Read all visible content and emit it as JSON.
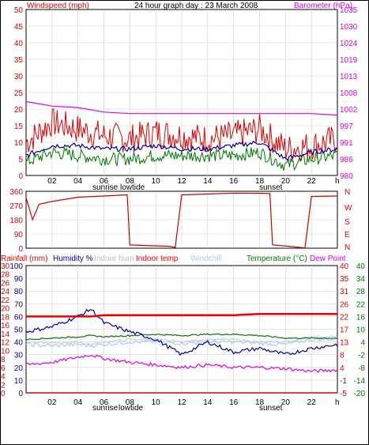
{
  "header": {
    "windspeed_label": "Windspeed (mph)",
    "title": "24 hour graph day : 23 March 2008",
    "barometer_label": "Barometer (hPa)"
  },
  "colors": {
    "wind_avg": "#000099",
    "wind_gust": "#dd0000",
    "wind_low": "#007700",
    "barometer": "#dd00dd",
    "direction": "#cc0000",
    "rain": "#dd0000",
    "humidity": "#000099",
    "indoor_hum": "#ccccdd",
    "indoor_temp": "#ee0000",
    "windchill": "#aaccee",
    "temperature": "#007700",
    "dew_point": "#dd00dd",
    "grid": "#d0d0d0"
  },
  "x_ticks": [
    "02",
    "04",
    "06",
    "08",
    "10",
    "12",
    "14",
    "16",
    "18",
    "20",
    "22"
  ],
  "x_unit": "h",
  "panel1_annotations": [
    "sunrise",
    "lowtide",
    "sunset"
  ],
  "panel3_annotations": [
    "sunrise",
    "lowtide",
    "sunset"
  ],
  "panel3_legend": {
    "rainfall": "Rainfall (mm)",
    "humidity": "Humidity %",
    "indoor_hum": "Indoor hum",
    "indoor_temp": "Indoor temp",
    "windchill": "Windchill",
    "temperature": "Temperature (°C)",
    "dew_point": "Dew Point"
  },
  "chart_data": [
    {
      "type": "line",
      "title": "24 hour graph day : 23 March 2008",
      "ylabel": "Windspeed (mph)",
      "ylabel_right": "Barometer (hPa)",
      "ylim": [
        0,
        50
      ],
      "y_ticks": [
        0,
        5,
        10,
        15,
        20,
        25,
        30,
        35,
        40,
        45,
        50
      ],
      "y2_ticks": [
        980,
        986,
        991,
        997,
        1002,
        1008,
        1013,
        1019,
        1024,
        1030,
        1035
      ],
      "x": [
        0,
        2,
        4,
        6,
        8,
        10,
        12,
        14,
        16,
        18,
        20,
        22,
        24
      ],
      "series": [
        {
          "name": "gust",
          "values": [
            10,
            16,
            14,
            12,
            11,
            13,
            12,
            11,
            12,
            14,
            8,
            9,
            11
          ]
        },
        {
          "name": "average",
          "values": [
            6,
            9,
            9,
            8,
            8,
            9,
            8,
            8,
            9,
            10,
            5,
            7,
            8
          ]
        },
        {
          "name": "low",
          "values": [
            4,
            7,
            6,
            5,
            5,
            6,
            6,
            6,
            6,
            7,
            3,
            5,
            6
          ]
        },
        {
          "name": "barometer",
          "values": [
            1004.5,
            1003,
            1002.5,
            1001,
            1000.5,
            1000.5,
            1000.5,
            1000.5,
            1000.5,
            1000.5,
            1000.5,
            1000.5,
            1000
          ]
        }
      ]
    },
    {
      "type": "line",
      "ylabel": "direction",
      "y_ticks": [
        0,
        90,
        180,
        270,
        360
      ],
      "y2_labels": [
        "N",
        "W",
        "S",
        "E",
        "N"
      ],
      "ylim": [
        0,
        360
      ],
      "x": [
        0,
        0.5,
        1,
        2,
        4,
        6,
        7.8,
        8,
        11,
        11.5,
        12,
        14,
        16,
        18,
        18.8,
        19,
        21,
        21.5,
        22,
        24
      ],
      "series": [
        {
          "name": "wind direction",
          "values": [
            320,
            180,
            280,
            300,
            320,
            330,
            340,
            20,
            10,
            5,
            340,
            345,
            350,
            350,
            345,
            25,
            10,
            5,
            330,
            330
          ]
        }
      ]
    },
    {
      "type": "line",
      "ylabel": "Rainfall (mm)",
      "y_ticks_left_outer": [
        0,
        2,
        4,
        6,
        8,
        10,
        12,
        14,
        16,
        18,
        20,
        22,
        24,
        26,
        28,
        30
      ],
      "y_ticks_humidity": [
        0,
        10,
        20,
        30,
        40,
        50,
        60,
        70,
        80,
        90,
        100
      ],
      "y_ticks_temp_inner": [
        -5,
        -1,
        4,
        8,
        13,
        17,
        22,
        26,
        31,
        35,
        40
      ],
      "y_ticks_temp_outer": [
        -20,
        -14,
        -8,
        -2,
        4,
        10,
        16,
        22,
        28,
        34,
        40
      ],
      "x": [
        0,
        2,
        4,
        5,
        6,
        8,
        10,
        12,
        14,
        16,
        18,
        20,
        22,
        24
      ],
      "series": [
        {
          "name": "Humidity %",
          "values": [
            48,
            52,
            60,
            66,
            55,
            48,
            42,
            30,
            40,
            32,
            35,
            30,
            35,
            38
          ]
        },
        {
          "name": "Indoor hum",
          "values": [
            40,
            39,
            40,
            38,
            40,
            42,
            42,
            40,
            42,
            42,
            40,
            40,
            44,
            44
          ]
        },
        {
          "name": "Indoor temp",
          "values": [
            60,
            60,
            60,
            60,
            61,
            61,
            61,
            61,
            61,
            61,
            62,
            62,
            62,
            62
          ]
        },
        {
          "name": "Windchill",
          "values": [
            38,
            37,
            38,
            37,
            38,
            40,
            40,
            39,
            40,
            40,
            39,
            38,
            42,
            42
          ]
        },
        {
          "name": "Temperature (°C)",
          "values": [
            42,
            43,
            44,
            45,
            44,
            45,
            46,
            45,
            46,
            46,
            45,
            43,
            43,
            43
          ]
        },
        {
          "name": "Dew Point",
          "values": [
            22,
            24,
            28,
            30,
            27,
            24,
            22,
            20,
            22,
            20,
            20,
            19,
            17,
            18
          ]
        },
        {
          "name": "Rainfall (mm)",
          "values": [
            0,
            0,
            0,
            0,
            0,
            0,
            0,
            0,
            0,
            0,
            0,
            0,
            0,
            0
          ]
        }
      ]
    }
  ]
}
